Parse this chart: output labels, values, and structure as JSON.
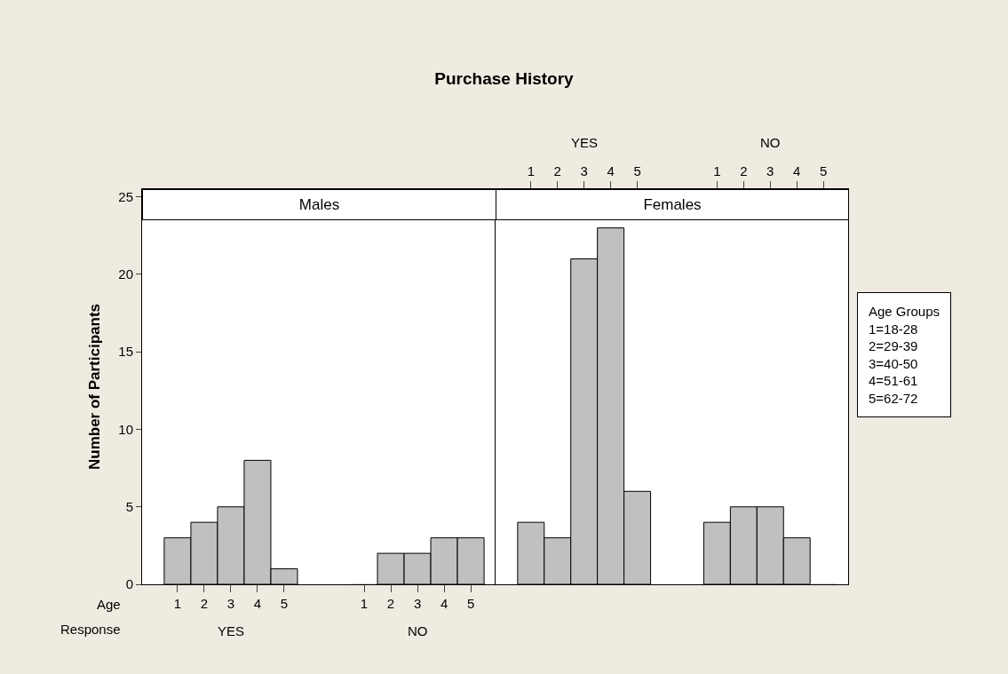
{
  "chart_data": [
    {
      "type": "bar",
      "title": "Purchase History",
      "subtitle": "Males",
      "ylabel": "Number of Participants",
      "categories": [
        "1",
        "2",
        "3",
        "4",
        "5",
        null,
        null,
        "1",
        "2",
        "3",
        "4",
        "5"
      ],
      "values": [
        3,
        4,
        5,
        8,
        1,
        null,
        null,
        0,
        2,
        2,
        3,
        3
      ],
      "color": "#c0c0c0",
      "ylim": [
        0,
        25.5
      ],
      "yticks": [
        0,
        5,
        10,
        15,
        20,
        25
      ],
      "grid": false,
      "annotations": [
        "YES",
        "NO",
        "Age",
        "Response"
      ]
    },
    {
      "type": "bar",
      "subtitle": "Females",
      "categories": [
        "1",
        "2",
        "3",
        "4",
        "5",
        null,
        null,
        "1",
        "2",
        "3",
        "4",
        "5"
      ],
      "values": [
        4,
        3,
        21,
        23,
        6,
        null,
        null,
        4,
        5,
        5,
        3,
        0
      ],
      "color": "#c0c0c0",
      "ylim": [
        0,
        25.5
      ],
      "yticks": [
        0,
        5,
        10,
        15,
        20,
        25
      ],
      "grid": false,
      "tick_labels": "x",
      "annotations": [
        "YES",
        "NO",
        "Age Groups\n1=18-28\n2=29-39\n3=40-50\n4=51-61\n5=62-72"
      ]
    }
  ]
}
